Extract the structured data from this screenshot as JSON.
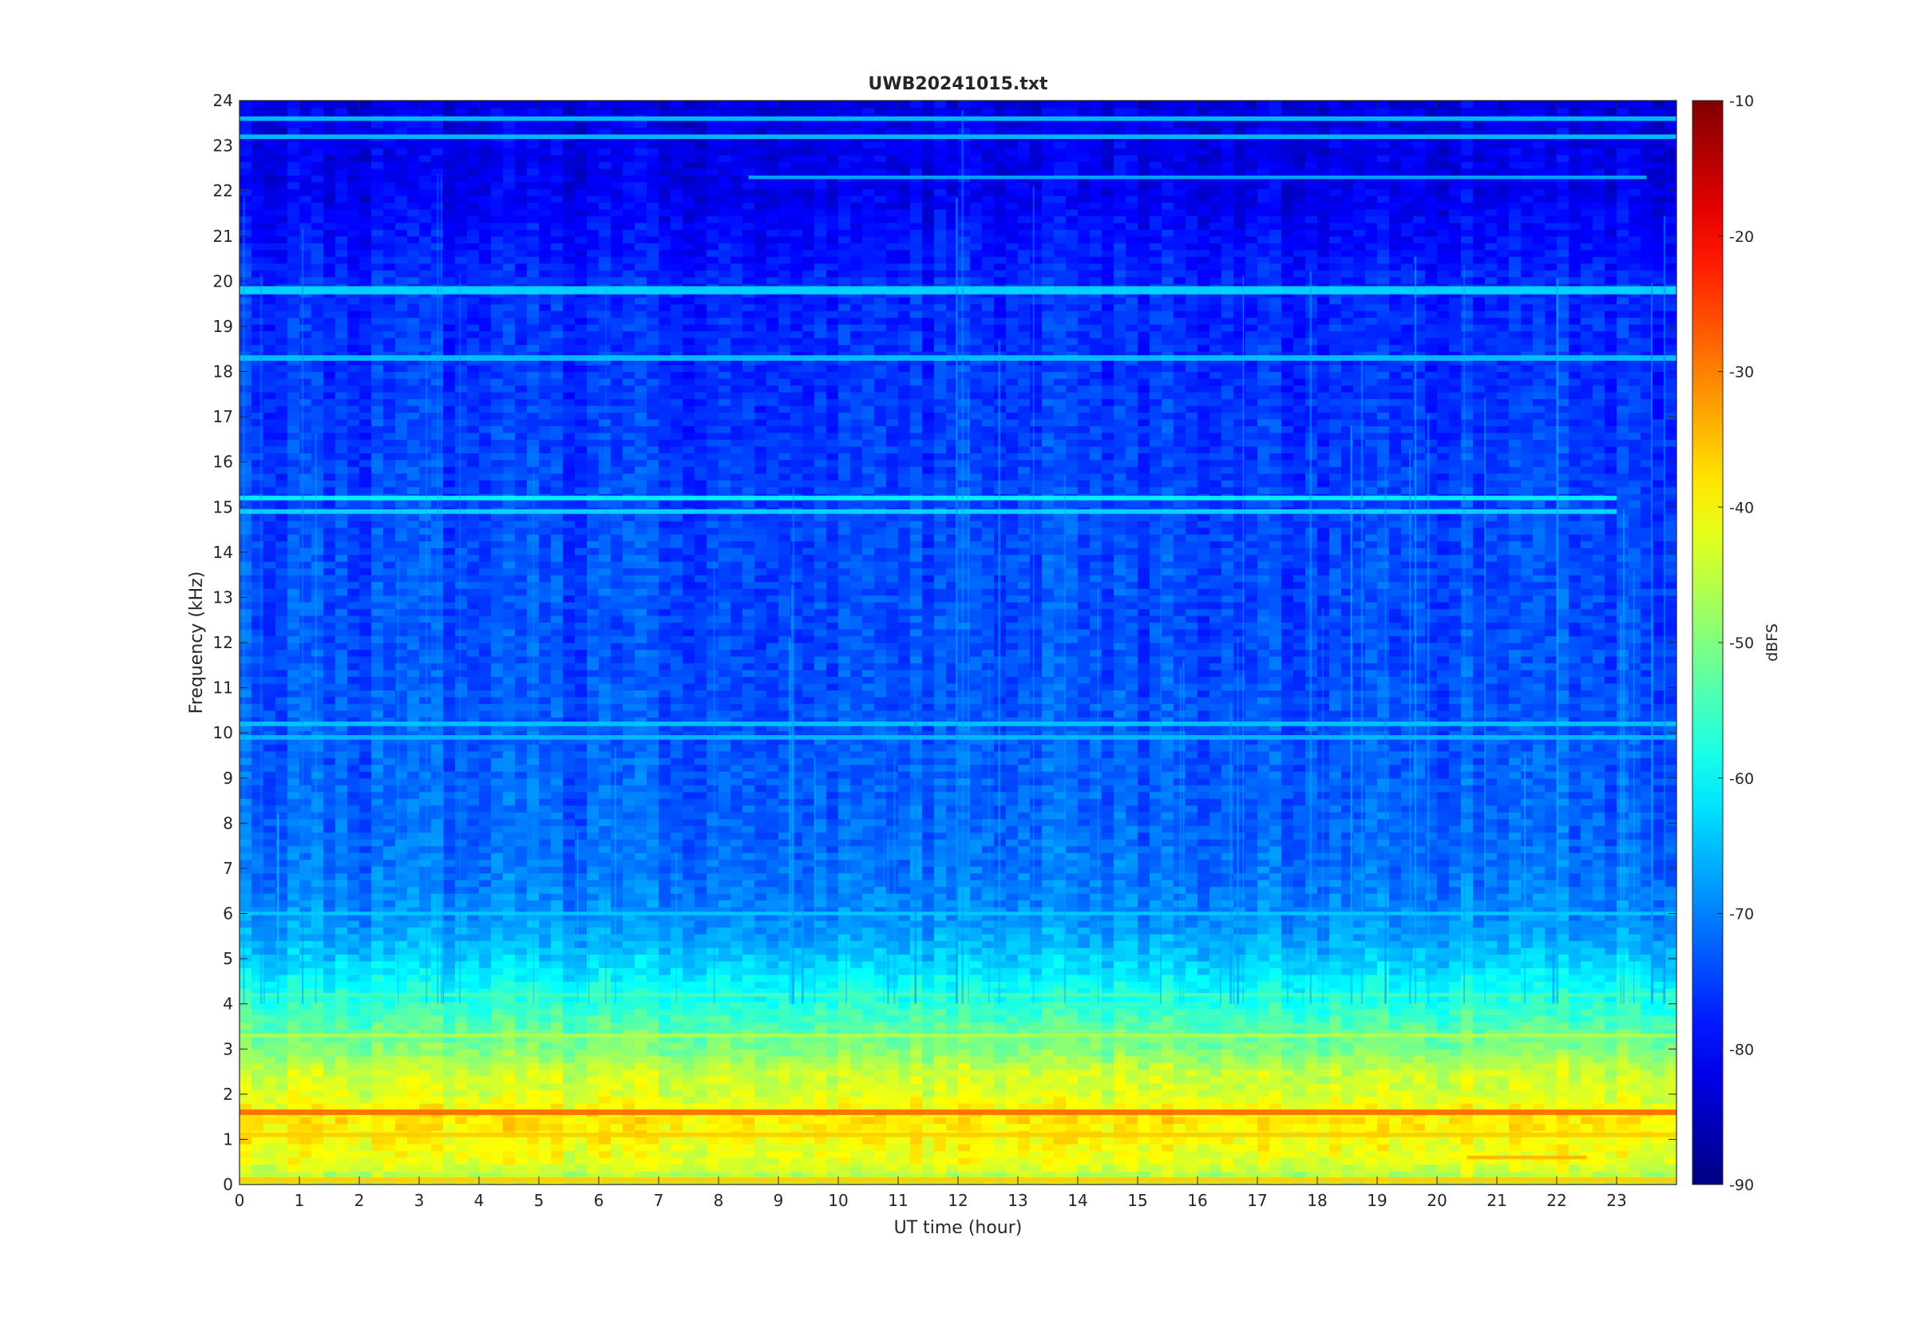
{
  "chart_data": {
    "type": "heatmap",
    "title": "UWB20241015.txt",
    "xlabel": "UT time (hour)",
    "ylabel": "Frequency (kHz)",
    "xlim": [
      0,
      24
    ],
    "ylim": [
      0,
      24
    ],
    "x_ticks": [
      0,
      1,
      2,
      3,
      4,
      5,
      6,
      7,
      8,
      9,
      10,
      11,
      12,
      13,
      14,
      15,
      16,
      17,
      18,
      19,
      20,
      21,
      22,
      23
    ],
    "y_ticks": [
      0,
      1,
      2,
      3,
      4,
      5,
      6,
      7,
      8,
      9,
      10,
      11,
      12,
      13,
      14,
      15,
      16,
      17,
      18,
      19,
      20,
      21,
      22,
      23,
      24
    ],
    "colormap": "jet",
    "colorbar": {
      "label": "dBFS",
      "limits": [
        -90,
        -10
      ],
      "ticks": [
        -10,
        -20,
        -30,
        -40,
        -50,
        -60,
        -70,
        -80,
        -90
      ]
    },
    "background_profile_dBFS": [
      {
        "f": 0.0,
        "v": -48
      },
      {
        "f": 0.5,
        "v": -42
      },
      {
        "f": 1.0,
        "v": -40
      },
      {
        "f": 1.5,
        "v": -38
      },
      {
        "f": 2.0,
        "v": -43
      },
      {
        "f": 2.5,
        "v": -44
      },
      {
        "f": 3.0,
        "v": -50
      },
      {
        "f": 3.5,
        "v": -53
      },
      {
        "f": 4.0,
        "v": -57
      },
      {
        "f": 4.5,
        "v": -60
      },
      {
        "f": 5.0,
        "v": -64
      },
      {
        "f": 5.5,
        "v": -67
      },
      {
        "f": 6.0,
        "v": -69
      },
      {
        "f": 7.0,
        "v": -71
      },
      {
        "f": 8.0,
        "v": -72
      },
      {
        "f": 10.0,
        "v": -73
      },
      {
        "f": 12.0,
        "v": -74
      },
      {
        "f": 14.0,
        "v": -74
      },
      {
        "f": 16.0,
        "v": -75
      },
      {
        "f": 18.0,
        "v": -76
      },
      {
        "f": 20.0,
        "v": -77
      },
      {
        "f": 21.0,
        "v": -79
      },
      {
        "f": 22.0,
        "v": -81
      },
      {
        "f": 24.0,
        "v": -82
      }
    ],
    "narrowband_lines": [
      {
        "f": 19.8,
        "width": 0.18,
        "v": -62,
        "t_start": 0,
        "t_end": 24
      },
      {
        "f": 18.3,
        "width": 0.12,
        "v": -64,
        "t_start": 0,
        "t_end": 24
      },
      {
        "f": 15.2,
        "width": 0.1,
        "v": -60,
        "t_start": 0,
        "t_end": 23
      },
      {
        "f": 14.9,
        "width": 0.1,
        "v": -62,
        "t_start": 0,
        "t_end": 23
      },
      {
        "f": 10.2,
        "width": 0.1,
        "v": -64,
        "t_start": 0,
        "t_end": 24
      },
      {
        "f": 9.9,
        "width": 0.1,
        "v": -65,
        "t_start": 0,
        "t_end": 24
      },
      {
        "f": 22.3,
        "width": 0.08,
        "v": -66,
        "t_start": 8.5,
        "t_end": 23.5
      },
      {
        "f": 23.2,
        "width": 0.1,
        "v": -64,
        "t_start": 0,
        "t_end": 24
      },
      {
        "f": 23.6,
        "width": 0.1,
        "v": -64,
        "t_start": 0,
        "t_end": 24
      },
      {
        "f": 1.6,
        "width": 0.12,
        "v": -28,
        "t_start": 0,
        "t_end": 24
      },
      {
        "f": 1.1,
        "width": 0.1,
        "v": -36,
        "t_start": 0,
        "t_end": 24
      },
      {
        "f": 0.1,
        "width": 0.12,
        "v": -36,
        "t_start": 0,
        "t_end": 24
      },
      {
        "f": 0.6,
        "width": 0.08,
        "v": -34,
        "t_start": 20.5,
        "t_end": 22.5
      },
      {
        "f": 6.0,
        "width": 0.08,
        "v": -64,
        "t_start": 0,
        "t_end": 24
      },
      {
        "f": 4.2,
        "width": 0.08,
        "v": -54,
        "t_start": 0,
        "t_end": 24
      },
      {
        "f": 3.3,
        "width": 0.08,
        "v": -46,
        "t_start": 0,
        "t_end": 24
      }
    ]
  }
}
